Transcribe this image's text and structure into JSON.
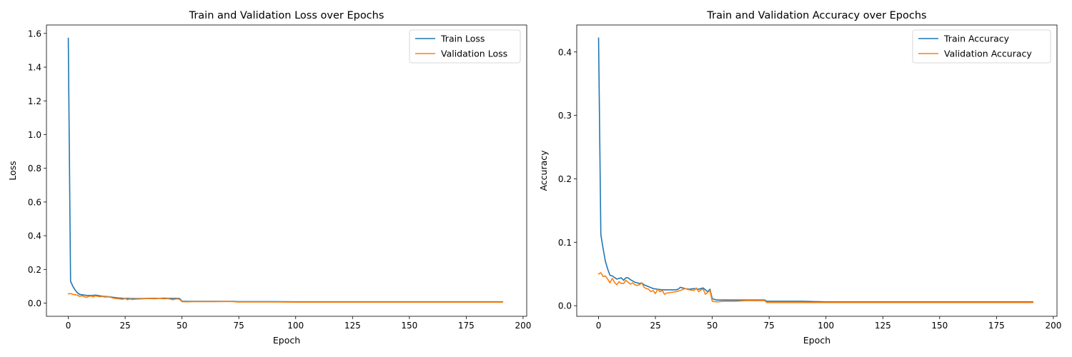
{
  "colors": {
    "train": "#1f77b4",
    "validation": "#ff7f0e",
    "axis": "#000000",
    "background": "#ffffff"
  },
  "chart_data": [
    {
      "type": "line",
      "title": "Train and Validation Loss over Epochs",
      "xlabel": "Epoch",
      "ylabel": "Loss",
      "xlim": [
        -9.6,
        201.6
      ],
      "ylim": [
        -0.078,
        1.65
      ],
      "xticks": [
        0,
        25,
        50,
        75,
        100,
        125,
        150,
        175,
        200
      ],
      "xtick_labels": [
        "0",
        "25",
        "50",
        "75",
        "100",
        "125",
        "150",
        "175",
        "200"
      ],
      "yticks": [
        0.0,
        0.2,
        0.4,
        0.6,
        0.8,
        1.0,
        1.2,
        1.4,
        1.6
      ],
      "ytick_labels": [
        "0.0",
        "0.2",
        "0.4",
        "0.6",
        "0.8",
        "1.0",
        "1.2",
        "1.4",
        "1.6"
      ],
      "grid": false,
      "legend_position": "top-right",
      "series": [
        {
          "name": "Train Loss",
          "color": "#1f77b4",
          "x": [
            0,
            1,
            2,
            3,
            4,
            5,
            6,
            8,
            10,
            12,
            14,
            16,
            18,
            20,
            22,
            24,
            26,
            28,
            30,
            32,
            34,
            36,
            38,
            40,
            42,
            44,
            46,
            48,
            49,
            50,
            52,
            55,
            60,
            65,
            70,
            73,
            74,
            75,
            80,
            90,
            100,
            110,
            120,
            130,
            140,
            150,
            160,
            170,
            180,
            191
          ],
          "y": [
            1.572,
            0.13,
            0.1,
            0.078,
            0.062,
            0.052,
            0.05,
            0.046,
            0.045,
            0.048,
            0.043,
            0.04,
            0.038,
            0.034,
            0.031,
            0.029,
            0.028,
            0.027,
            0.027,
            0.027,
            0.028,
            0.029,
            0.029,
            0.028,
            0.03,
            0.029,
            0.028,
            0.029,
            0.027,
            0.012,
            0.011,
            0.011,
            0.011,
            0.011,
            0.011,
            0.011,
            0.009,
            0.009,
            0.009,
            0.009,
            0.008,
            0.008,
            0.008,
            0.008,
            0.008,
            0.008,
            0.008,
            0.008,
            0.008,
            0.008
          ]
        },
        {
          "name": "Validation Loss",
          "color": "#ff7f0e",
          "x": [
            0,
            1,
            2,
            3,
            4,
            5,
            6,
            7,
            8,
            9,
            10,
            11,
            12,
            13,
            14,
            15,
            16,
            18,
            20,
            22,
            24,
            25,
            26,
            27,
            28,
            30,
            32,
            34,
            36,
            38,
            40,
            42,
            44,
            46,
            47,
            48,
            49,
            50,
            52,
            55,
            60,
            65,
            70,
            73,
            74,
            75,
            80,
            90,
            100,
            110,
            120,
            130,
            140,
            150,
            160,
            170,
            180,
            191
          ],
          "y": [
            0.055,
            0.057,
            0.052,
            0.05,
            0.048,
            0.04,
            0.044,
            0.038,
            0.035,
            0.04,
            0.042,
            0.037,
            0.043,
            0.04,
            0.038,
            0.04,
            0.036,
            0.037,
            0.029,
            0.026,
            0.023,
            0.028,
            0.02,
            0.025,
            0.022,
            0.024,
            0.025,
            0.027,
            0.027,
            0.026,
            0.028,
            0.026,
            0.027,
            0.02,
            0.024,
            0.026,
            0.022,
            0.009,
            0.008,
            0.009,
            0.009,
            0.009,
            0.01,
            0.009,
            0.007,
            0.007,
            0.007,
            0.007,
            0.006,
            0.006,
            0.006,
            0.006,
            0.006,
            0.006,
            0.006,
            0.006,
            0.006,
            0.006
          ]
        }
      ]
    },
    {
      "type": "line",
      "title": "Train and Validation Accuracy over Epochs",
      "xlabel": "Epoch",
      "ylabel": "Accuracy",
      "xlim": [
        -9.6,
        201.6
      ],
      "ylim": [
        -0.0167,
        0.4425
      ],
      "xticks": [
        0,
        25,
        50,
        75,
        100,
        125,
        150,
        175,
        200
      ],
      "xtick_labels": [
        "0",
        "25",
        "50",
        "75",
        "100",
        "125",
        "150",
        "175",
        "200"
      ],
      "yticks": [
        0.0,
        0.1,
        0.2,
        0.3,
        0.4
      ],
      "ytick_labels": [
        "0.0",
        "0.1",
        "0.2",
        "0.3",
        "0.4"
      ],
      "grid": false,
      "legend_position": "top-right",
      "series": [
        {
          "name": "Train Accuracy",
          "color": "#1f77b4",
          "x": [
            0,
            1,
            2,
            3,
            4,
            5,
            6,
            8,
            10,
            11,
            12,
            13,
            14,
            16,
            18,
            19,
            20,
            22,
            24,
            26,
            28,
            30,
            32,
            34,
            35,
            36,
            38,
            40,
            42,
            44,
            45,
            46,
            47,
            48,
            49,
            50,
            52,
            55,
            60,
            65,
            70,
            73,
            74,
            75,
            80,
            90,
            100,
            110,
            120,
            130,
            140,
            150,
            160,
            170,
            180,
            191
          ],
          "y": [
            0.422,
            0.112,
            0.09,
            0.07,
            0.058,
            0.048,
            0.047,
            0.042,
            0.044,
            0.04,
            0.044,
            0.044,
            0.041,
            0.037,
            0.035,
            0.036,
            0.033,
            0.03,
            0.027,
            0.026,
            0.025,
            0.025,
            0.025,
            0.025,
            0.026,
            0.029,
            0.027,
            0.026,
            0.027,
            0.026,
            0.027,
            0.028,
            0.025,
            0.022,
            0.026,
            0.011,
            0.009,
            0.009,
            0.009,
            0.009,
            0.009,
            0.009,
            0.007,
            0.007,
            0.007,
            0.007,
            0.006,
            0.006,
            0.006,
            0.006,
            0.006,
            0.006,
            0.006,
            0.006,
            0.006,
            0.006
          ]
        },
        {
          "name": "Validation Accuracy",
          "color": "#ff7f0e",
          "x": [
            0,
            1,
            2,
            3,
            4,
            5,
            6,
            7,
            8,
            9,
            10,
            11,
            12,
            13,
            14,
            15,
            16,
            17,
            18,
            19,
            20,
            21,
            22,
            23,
            24,
            25,
            26,
            27,
            28,
            29,
            30,
            32,
            34,
            36,
            38,
            40,
            42,
            43,
            44,
            45,
            46,
            47,
            48,
            49,
            50,
            52,
            55,
            60,
            65,
            70,
            73,
            74,
            75,
            80,
            90,
            100,
            110,
            120,
            130,
            140,
            150,
            160,
            170,
            180,
            191
          ],
          "y": [
            0.05,
            0.052,
            0.046,
            0.047,
            0.042,
            0.036,
            0.043,
            0.037,
            0.033,
            0.038,
            0.035,
            0.035,
            0.04,
            0.037,
            0.034,
            0.036,
            0.033,
            0.032,
            0.033,
            0.036,
            0.029,
            0.027,
            0.026,
            0.022,
            0.024,
            0.019,
            0.026,
            0.022,
            0.024,
            0.018,
            0.02,
            0.021,
            0.022,
            0.024,
            0.027,
            0.025,
            0.024,
            0.028,
            0.022,
            0.025,
            0.026,
            0.018,
            0.021,
            0.024,
            0.007,
            0.006,
            0.007,
            0.007,
            0.008,
            0.008,
            0.008,
            0.005,
            0.005,
            0.005,
            0.005,
            0.005,
            0.005,
            0.005,
            0.005,
            0.005,
            0.005,
            0.005,
            0.005,
            0.005,
            0.005
          ]
        }
      ]
    }
  ]
}
